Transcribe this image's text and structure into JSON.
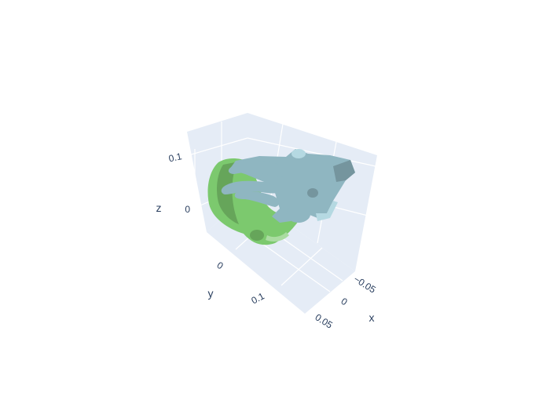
{
  "chart_data": {
    "type": "mesh3d",
    "scene": {
      "background_color": "#e5ecf6",
      "grid_color": "#ffffff",
      "axes": {
        "x": {
          "title": "x",
          "tick_labels": [
            "−0.05",
            "0",
            "0.05"
          ],
          "tick_values": [
            -0.05,
            0,
            0.05
          ]
        },
        "y": {
          "title": "y",
          "tick_labels": [
            "0",
            "0.1"
          ],
          "tick_values": [
            0,
            0.1
          ]
        },
        "z": {
          "title": "z",
          "tick_labels": [
            "0",
            "0.1"
          ],
          "tick_values": [
            0,
            0.1
          ]
        }
      }
    },
    "series": [
      {
        "color": "#7cc96e",
        "shape": "cylindrical-grip-object"
      },
      {
        "color": "#a3cfdb",
        "shape": "hand-mesh"
      }
    ]
  }
}
